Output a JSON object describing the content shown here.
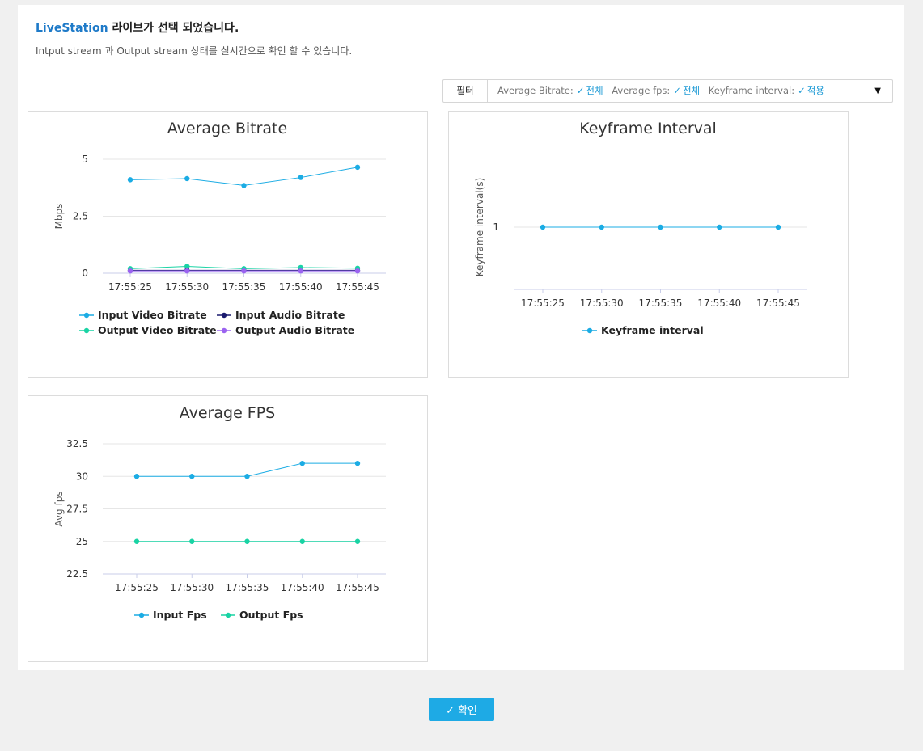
{
  "header": {
    "brand": "LiveStation",
    "title_rest": " 라이브가 선택 되었습니다.",
    "subtitle": "Intput stream 과 Output stream 상태를 실시간으로 확인 할 수 있습니다."
  },
  "filter": {
    "label": "필터",
    "items": [
      {
        "name": "Average Bitrate:",
        "value": "전체"
      },
      {
        "name": "Average fps:",
        "value": "전체"
      },
      {
        "name": "Keyframe interval:",
        "value": "적용"
      }
    ]
  },
  "colors": {
    "accent": "#1eaae5",
    "input_video": "#1bace4",
    "input_audio": "#1a1a6e",
    "output_video": "#19d3a4",
    "output_audio": "#9b63f0"
  },
  "confirm_button": "확인",
  "chart_data": [
    {
      "type": "line",
      "title": "Average Bitrate",
      "ylabel": "Mbps",
      "xlabel": "",
      "x": [
        "17:55:25",
        "17:55:30",
        "17:55:35",
        "17:55:40",
        "17:55:45"
      ],
      "yticks": [
        0,
        2.5,
        5
      ],
      "ylim": [
        0,
        5
      ],
      "grid": true,
      "legend": "bottom",
      "series": [
        {
          "name": "Input Video Bitrate",
          "color": "#1bace4",
          "values": [
            4.1,
            4.15,
            3.85,
            4.2,
            4.65
          ]
        },
        {
          "name": "Input Audio Bitrate",
          "color": "#1a1a6e",
          "values": [
            0.13,
            0.13,
            0.13,
            0.13,
            0.13
          ]
        },
        {
          "name": "Output Video Bitrate",
          "color": "#19d3a4",
          "values": [
            0.2,
            0.3,
            0.2,
            0.25,
            0.22
          ]
        },
        {
          "name": "Output Audio Bitrate",
          "color": "#9b63f0",
          "values": [
            0.1,
            0.1,
            0.1,
            0.1,
            0.1
          ]
        }
      ]
    },
    {
      "type": "line",
      "title": "Keyframe Interval",
      "ylabel": "Keyframe interval(s)",
      "xlabel": "",
      "x": [
        "17:55:25",
        "17:55:30",
        "17:55:35",
        "17:55:40",
        "17:55:45"
      ],
      "yticks": [
        1
      ],
      "ylim": [
        0,
        2
      ],
      "grid": true,
      "legend": "bottom",
      "series": [
        {
          "name": "Keyframe interval",
          "color": "#1bace4",
          "values": [
            1,
            1,
            1,
            1,
            1
          ]
        }
      ]
    },
    {
      "type": "line",
      "title": "Average FPS",
      "ylabel": "Avg fps",
      "xlabel": "",
      "x": [
        "17:55:25",
        "17:55:30",
        "17:55:35",
        "17:55:40",
        "17:55:45"
      ],
      "yticks": [
        22.5,
        25,
        27.5,
        30,
        32.5
      ],
      "ylim": [
        22.5,
        32.5
      ],
      "grid": true,
      "legend": "bottom",
      "series": [
        {
          "name": "Input Fps",
          "color": "#1bace4",
          "values": [
            30,
            30,
            30,
            31,
            31
          ]
        },
        {
          "name": "Output Fps",
          "color": "#19d3a4",
          "values": [
            25,
            25,
            25,
            25,
            25
          ]
        }
      ]
    }
  ]
}
